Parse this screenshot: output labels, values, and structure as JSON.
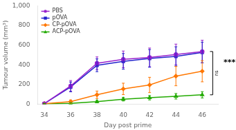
{
  "chart_data": {
    "type": "line",
    "xlabel": "Day post prime",
    "ylabel": "Tumour volume (mm³)",
    "x": [
      34,
      36,
      38,
      40,
      42,
      44,
      46
    ],
    "series": [
      {
        "name": "PBS",
        "color": "#9922cc",
        "marker": "circle",
        "values": [
          5,
          185,
          415,
          455,
          475,
          505,
          535
        ],
        "errors": [
          8,
          55,
          65,
          85,
          95,
          105,
          115
        ]
      },
      {
        "name": "pOVA",
        "color": "#2222cc",
        "marker": "square",
        "values": [
          5,
          175,
          395,
          435,
          465,
          485,
          525
        ],
        "errors": [
          8,
          50,
          65,
          80,
          90,
          98,
          105
        ]
      },
      {
        "name": "CP-pOVA",
        "color": "#ff7700",
        "marker": "diamond",
        "values": [
          5,
          25,
          95,
          155,
          195,
          285,
          335
        ],
        "errors": [
          5,
          18,
          38,
          58,
          78,
          98,
          108
        ]
      },
      {
        "name": "ACP-pOVA",
        "color": "#22aa00",
        "marker": "triangle",
        "values": [
          3,
          8,
          25,
          50,
          65,
          80,
          95
        ],
        "errors": [
          3,
          8,
          12,
          18,
          22,
          28,
          32
        ]
      }
    ],
    "xlim": [
      33.5,
      47.2
    ],
    "ylim": [
      0,
      1000
    ],
    "xticks": [
      34,
      36,
      38,
      40,
      42,
      44,
      46
    ],
    "yticks": [
      0,
      200,
      400,
      600,
      800,
      1000
    ],
    "grid": false,
    "legend": "upper left",
    "annotations": [
      {
        "text": "ns",
        "x": 46.8,
        "y": [
          95,
          535
        ]
      },
      {
        "text": "***"
      }
    ]
  }
}
